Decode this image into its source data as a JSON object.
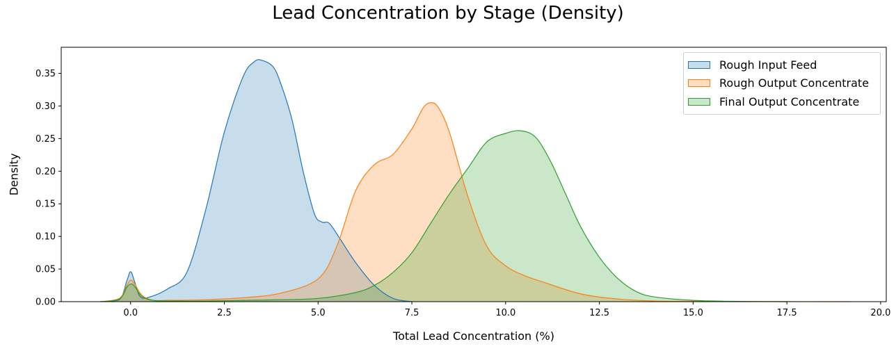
{
  "chart_data": {
    "type": "area",
    "title": "Lead Concentration by Stage (Density)",
    "xlabel": "Total Lead Concentration (%)",
    "ylabel": "Density",
    "xlim": [
      -1.85,
      20.15
    ],
    "ylim": [
      0,
      0.39
    ],
    "xticks": [
      0.0,
      2.5,
      5.0,
      7.5,
      10.0,
      12.5,
      15.0,
      17.5,
      20.0
    ],
    "xtick_labels": [
      "0.0",
      "2.5",
      "5.0",
      "7.5",
      "10.0",
      "12.5",
      "15.0",
      "17.5",
      "20.0"
    ],
    "yticks": [
      0.0,
      0.05,
      0.1,
      0.15,
      0.2,
      0.25,
      0.3,
      0.35
    ],
    "ytick_labels": [
      "0.00",
      "0.05",
      "0.10",
      "0.15",
      "0.20",
      "0.25",
      "0.30",
      "0.35"
    ],
    "grid": false,
    "legend_position": "top-right",
    "series": [
      {
        "name": "Rough Input Feed",
        "color": "#1f77b4",
        "x": [
          -0.8,
          -0.3,
          -0.1,
          0.0,
          0.1,
          0.25,
          0.5,
          1.0,
          1.5,
          2.0,
          2.5,
          3.0,
          3.3,
          3.5,
          3.8,
          4.0,
          4.3,
          4.6,
          4.9,
          5.1,
          5.3,
          5.6,
          6.0,
          6.5,
          7.0,
          7.5
        ],
        "y": [
          0.0,
          0.003,
          0.032,
          0.046,
          0.032,
          0.008,
          0.007,
          0.02,
          0.045,
          0.14,
          0.26,
          0.345,
          0.368,
          0.37,
          0.36,
          0.335,
          0.28,
          0.2,
          0.135,
          0.122,
          0.12,
          0.095,
          0.06,
          0.025,
          0.005,
          0.0
        ]
      },
      {
        "name": "Rough Output Concentrate",
        "color": "#ff7f0e",
        "x": [
          -0.8,
          -0.3,
          -0.1,
          0.0,
          0.1,
          0.3,
          0.6,
          1.0,
          2.0,
          3.0,
          4.0,
          5.0,
          5.5,
          6.0,
          6.5,
          7.0,
          7.5,
          7.8,
          8.0,
          8.2,
          8.5,
          9.0,
          9.5,
          10.0,
          10.5,
          11.0,
          12.0,
          13.0,
          14.0,
          15.0,
          16.5,
          17.5,
          19.2
        ],
        "y": [
          0.0,
          0.005,
          0.025,
          0.033,
          0.028,
          0.01,
          0.002,
          0.002,
          0.003,
          0.006,
          0.013,
          0.035,
          0.085,
          0.17,
          0.21,
          0.226,
          0.265,
          0.297,
          0.305,
          0.298,
          0.26,
          0.16,
          0.085,
          0.055,
          0.04,
          0.03,
          0.012,
          0.004,
          0.001,
          0.0005,
          0.0002,
          0.0001,
          0.0
        ]
      },
      {
        "name": "Final Output Concentrate",
        "color": "#2ca02c",
        "x": [
          -0.8,
          -0.3,
          -0.1,
          0.0,
          0.1,
          0.3,
          0.6,
          1.0,
          2.0,
          3.0,
          4.0,
          5.0,
          6.0,
          6.5,
          7.0,
          7.5,
          8.0,
          8.5,
          9.0,
          9.5,
          10.0,
          10.4,
          10.8,
          11.2,
          11.6,
          12.0,
          12.5,
          13.0,
          13.5,
          14.0,
          15.0,
          16.0,
          17.5
        ],
        "y": [
          0.0,
          0.004,
          0.022,
          0.027,
          0.024,
          0.008,
          0.002,
          0.001,
          0.001,
          0.002,
          0.003,
          0.005,
          0.014,
          0.025,
          0.045,
          0.075,
          0.12,
          0.165,
          0.205,
          0.245,
          0.258,
          0.262,
          0.252,
          0.215,
          0.165,
          0.115,
          0.068,
          0.035,
          0.015,
          0.007,
          0.002,
          0.0005,
          0.0
        ]
      }
    ]
  }
}
